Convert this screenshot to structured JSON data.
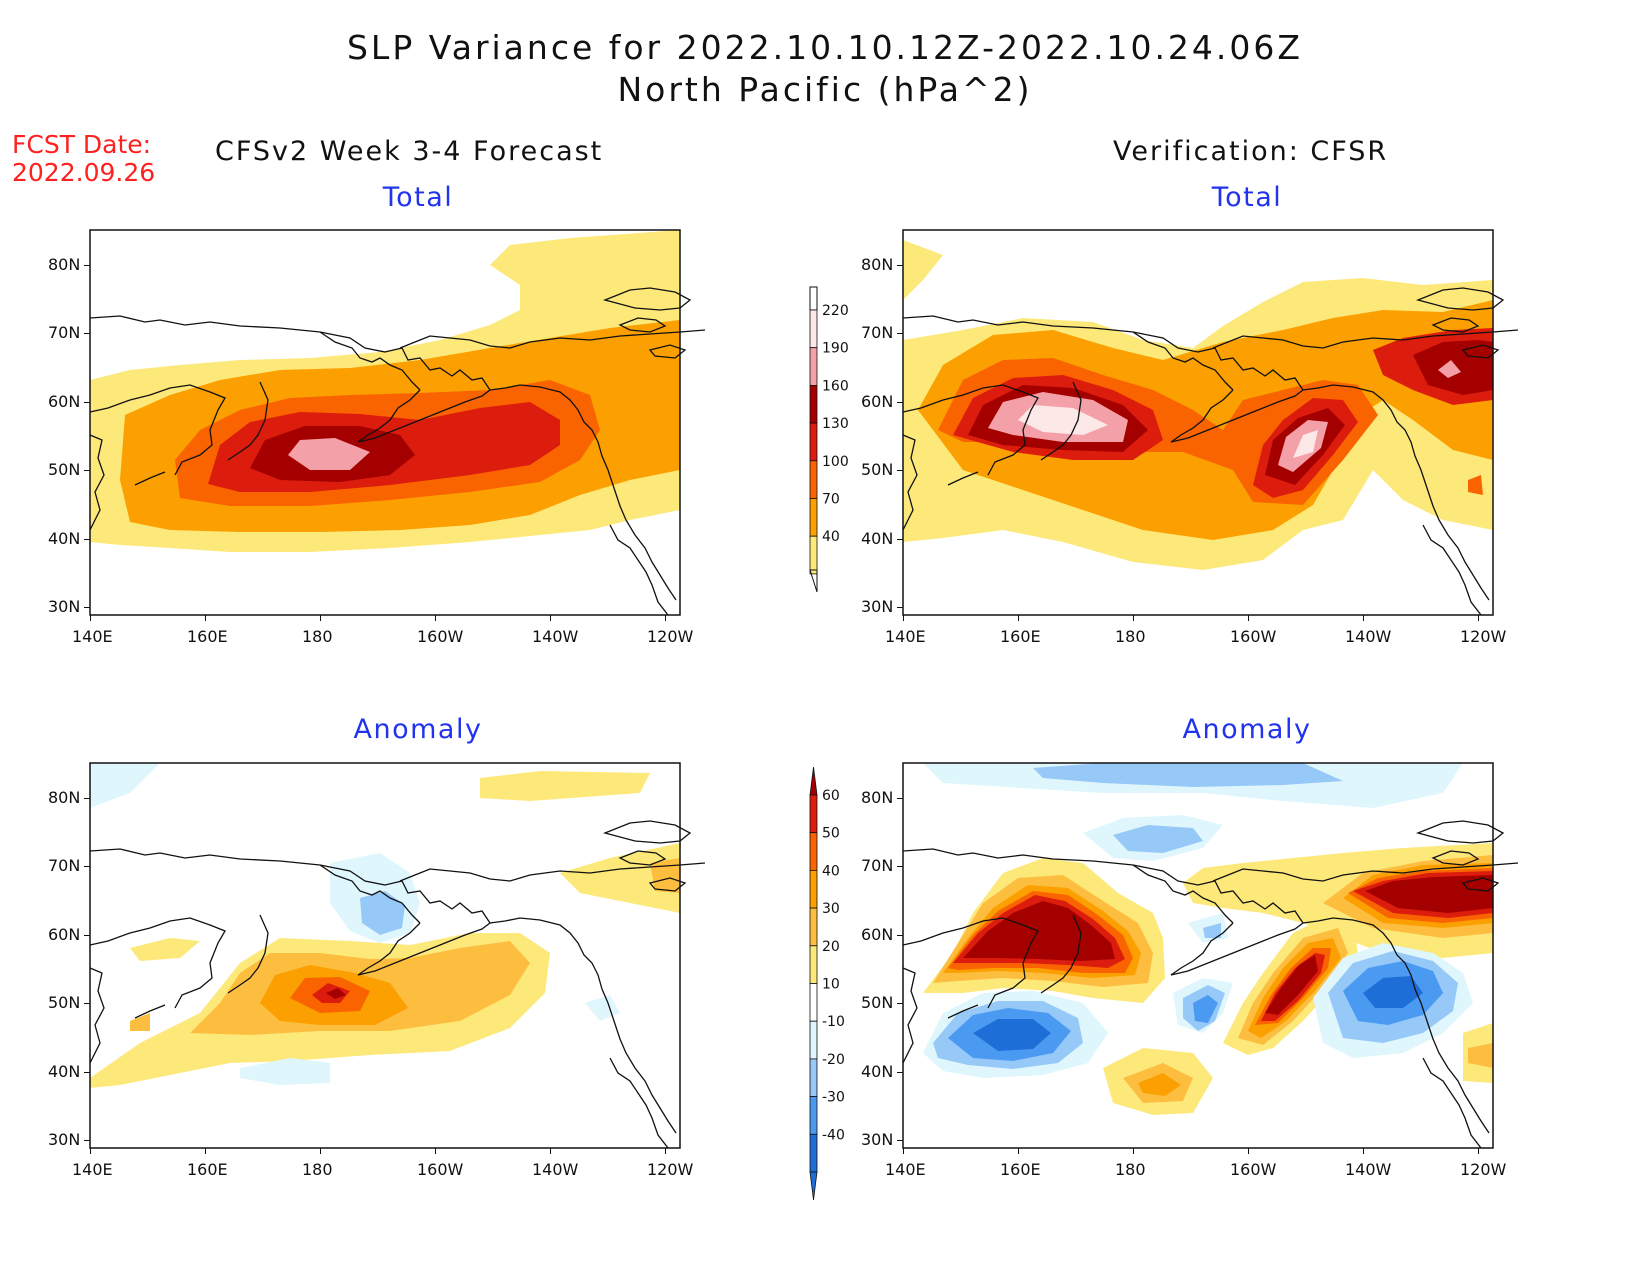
{
  "header": {
    "title_line1": "SLP Variance for 2022.10.10.12Z-2022.10.24.06Z",
    "title_line2": "North Pacific (hPa^2)",
    "fcst_label": "FCST Date:",
    "fcst_date": "2022.09.26"
  },
  "columns": {
    "left": "CFSv2 Week 3-4 Forecast",
    "right": "Verification: CFSR"
  },
  "panels": [
    {
      "id": "fcst-total",
      "subtitle": "Total"
    },
    {
      "id": "verif-total",
      "subtitle": "Total"
    },
    {
      "id": "fcst-anomaly",
      "subtitle": "Anomaly"
    },
    {
      "id": "verif-anomaly",
      "subtitle": "Anomaly"
    }
  ],
  "axes": {
    "lon_ticks": [
      "140E",
      "160E",
      "180",
      "160W",
      "140W",
      "120W"
    ],
    "lat_ticks": [
      "80N",
      "70N",
      "60N",
      "50N",
      "40N",
      "30N"
    ]
  },
  "colorbars": {
    "total": {
      "labels": [
        "220",
        "190",
        "160",
        "130",
        "100",
        "70",
        "40"
      ],
      "colors": [
        "#fde8e8",
        "#f4a0a8",
        "#a50000",
        "#dc1c0c",
        "#fa6400",
        "#fba000",
        "#fde87a"
      ]
    },
    "anomaly": {
      "labels": [
        "60",
        "50",
        "40",
        "30",
        "20",
        "10",
        "-10",
        "-20",
        "-30",
        "-40"
      ],
      "colors": [
        "#a50000",
        "#dc1c0c",
        "#fa6400",
        "#fba000",
        "#fdbe40",
        "#fde87a",
        "#ffffff",
        "#dff6fd",
        "#96c8f8",
        "#4a9af2",
        "#1e6ed8"
      ]
    }
  }
}
